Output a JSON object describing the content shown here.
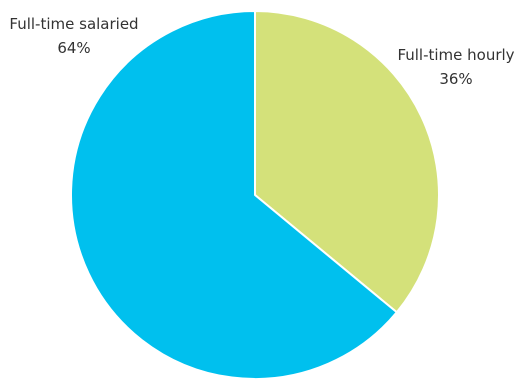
{
  "chart_data": {
    "type": "pie",
    "slices": [
      {
        "label": "Full-time hourly",
        "value_label": "36%",
        "value": 36,
        "color": "#d4e17a"
      },
      {
        "label": "Full-time salaried",
        "value_label": "64%",
        "value": 64,
        "color": "#00c0ee"
      }
    ],
    "start_angle_deg": 0,
    "direction": "clockwise",
    "slice_border_color": "#ffffff"
  }
}
